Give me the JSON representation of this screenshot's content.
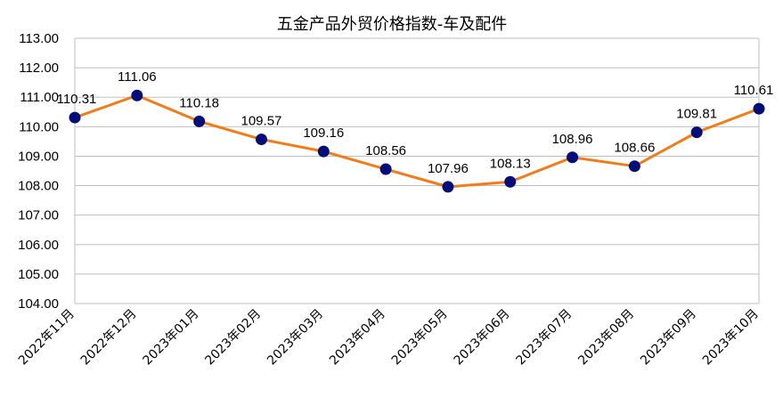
{
  "chart_data": {
    "type": "line",
    "title": "五金产品外贸价格指数-车及配件",
    "xlabel": "",
    "ylabel": "",
    "categories": [
      "2022年11月",
      "2022年12月",
      "2023年01月",
      "2023年02月",
      "2023年03月",
      "2023年04月",
      "2023年05月",
      "2023年06月",
      "2023年07月",
      "2023年08月",
      "2023年09月",
      "2023年10月"
    ],
    "series": [
      {
        "values": [
          110.31,
          111.06,
          110.18,
          109.57,
          109.16,
          108.56,
          107.96,
          108.13,
          108.96,
          108.66,
          109.81,
          110.61
        ],
        "labels": [
          "110.31",
          "111.06",
          "110.18",
          "109.57",
          "109.16",
          "108.56",
          "107.96",
          "108.13",
          "108.96",
          "108.66",
          "109.81",
          "110.61"
        ],
        "line_color": "#f07d1a",
        "marker_color": "#000e7a"
      }
    ],
    "ylim": [
      104,
      113
    ],
    "yticks": [
      "104.00",
      "105.00",
      "106.00",
      "107.00",
      "108.00",
      "109.00",
      "110.00",
      "111.00",
      "112.00",
      "113.00"
    ],
    "grid": true,
    "gridline_color": "#bfbfbf"
  }
}
